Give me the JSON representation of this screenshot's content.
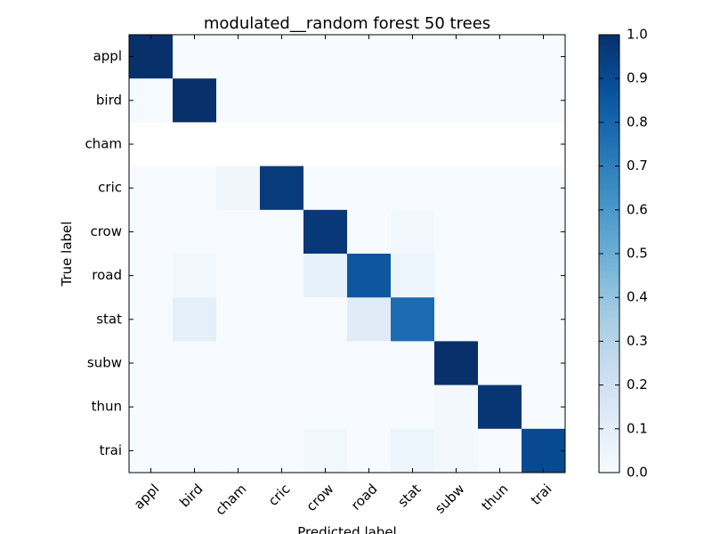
{
  "chart_data": {
    "type": "heatmap",
    "title": "modulated__random forest 50 trees",
    "xlabel": "Predicted label",
    "ylabel": "True label",
    "x_categories": [
      "appl",
      "bird",
      "cham",
      "cric",
      "crow",
      "road",
      "stat",
      "subw",
      "thun",
      "trai"
    ],
    "y_categories": [
      "appl",
      "bird",
      "cham",
      "cric",
      "crow",
      "road",
      "stat",
      "subw",
      "thun",
      "trai"
    ],
    "values": [
      [
        1.0,
        0,
        0,
        0,
        0,
        0,
        0,
        0,
        0,
        0
      ],
      [
        0.01,
        1.0,
        0,
        0,
        0,
        0,
        0,
        0,
        0,
        0
      ],
      [
        null,
        null,
        null,
        null,
        null,
        null,
        null,
        null,
        null,
        null
      ],
      [
        0,
        0,
        0.04,
        0.96,
        0,
        0,
        0,
        0,
        0,
        0
      ],
      [
        0,
        0,
        0,
        0,
        0.97,
        0,
        0.03,
        0,
        0,
        0
      ],
      [
        0,
        0.03,
        0,
        0,
        0.08,
        0.85,
        0.05,
        0,
        0,
        0
      ],
      [
        0,
        0.09,
        0,
        0,
        0,
        0.12,
        0.77,
        0,
        0,
        0
      ],
      [
        0,
        0,
        0,
        0,
        0,
        0,
        0,
        1.0,
        0,
        0
      ],
      [
        0,
        0,
        0,
        0,
        0,
        0,
        0,
        0.02,
        0.98,
        0
      ],
      [
        0,
        0,
        0,
        0,
        0.03,
        0,
        0.05,
        0.02,
        0,
        0.9
      ]
    ],
    "colorbar": {
      "min": 0.0,
      "max": 1.0,
      "ticks": [
        "0.0",
        "0.1",
        "0.2",
        "0.3",
        "0.4",
        "0.5",
        "0.6",
        "0.7",
        "0.8",
        "0.9",
        "1.0"
      ],
      "colormap": "Blues"
    },
    "grid": false,
    "x_tick_rotation": 45
  }
}
